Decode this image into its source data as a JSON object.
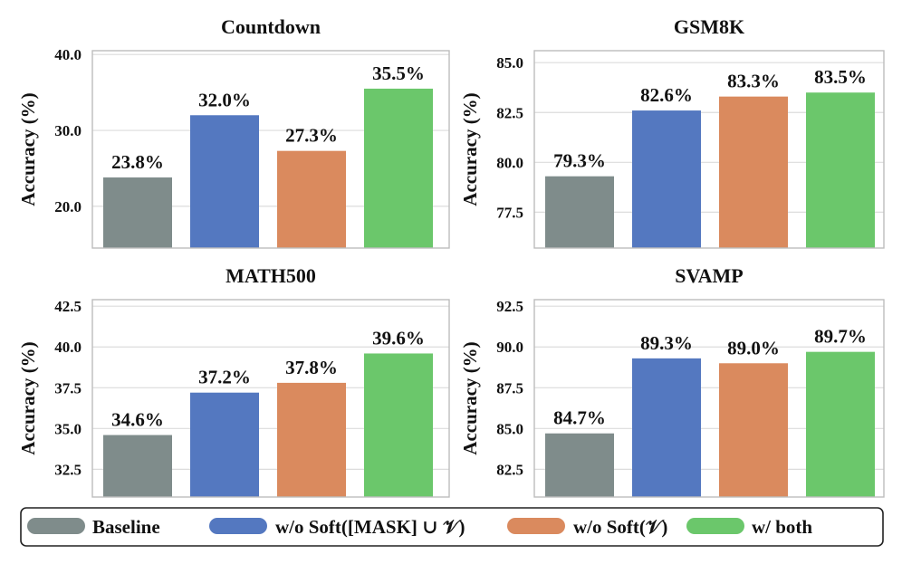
{
  "chart_data": [
    {
      "type": "bar",
      "title": "Countdown",
      "ylabel": "Accuracy (%)",
      "categories": [
        "Baseline",
        "w/o Soft([MASK] ∪ 𝒱)",
        "w/o Soft(𝒱)",
        "w/ both"
      ],
      "values": [
        23.8,
        32.0,
        27.3,
        35.5
      ],
      "value_labels": [
        "23.8%",
        "32.0%",
        "27.3%",
        "35.5%"
      ],
      "ylim": [
        14.5,
        40.5
      ],
      "yticks": [
        20.0,
        30.0,
        40.0
      ],
      "ytick_labels": [
        "20.0",
        "30.0",
        "40.0"
      ]
    },
    {
      "type": "bar",
      "title": "GSM8K",
      "ylabel": "Accuracy (%)",
      "categories": [
        "Baseline",
        "w/o Soft([MASK] ∪ 𝒱)",
        "w/o Soft(𝒱)",
        "w/ both"
      ],
      "values": [
        79.3,
        82.6,
        83.3,
        83.5
      ],
      "value_labels": [
        "79.3%",
        "82.6%",
        "83.3%",
        "83.5%"
      ],
      "ylim": [
        75.7,
        85.6
      ],
      "yticks": [
        77.5,
        80.0,
        82.5,
        85.0
      ],
      "ytick_labels": [
        "77.5",
        "80.0",
        "82.5",
        "85.0"
      ]
    },
    {
      "type": "bar",
      "title": "MATH500",
      "ylabel": "Accuracy (%)",
      "categories": [
        "Baseline",
        "w/o Soft([MASK] ∪ 𝒱)",
        "w/o Soft(𝒱)",
        "w/ both"
      ],
      "values": [
        34.6,
        37.2,
        37.8,
        39.6
      ],
      "value_labels": [
        "34.6%",
        "37.2%",
        "37.8%",
        "39.6%"
      ],
      "ylim": [
        30.8,
        42.9
      ],
      "yticks": [
        32.5,
        35.0,
        37.5,
        40.0,
        42.5
      ],
      "ytick_labels": [
        "32.5",
        "35.0",
        "37.5",
        "40.0",
        "42.5"
      ]
    },
    {
      "type": "bar",
      "title": "SVAMP",
      "ylabel": "Accuracy (%)",
      "categories": [
        "Baseline",
        "w/o Soft([MASK] ∪ 𝒱)",
        "w/o Soft(𝒱)",
        "w/ both"
      ],
      "values": [
        84.7,
        89.3,
        89.0,
        89.7
      ],
      "value_labels": [
        "84.7%",
        "89.3%",
        "89.0%",
        "89.7%"
      ],
      "ylim": [
        80.8,
        92.9
      ],
      "yticks": [
        82.5,
        85.0,
        87.5,
        90.0,
        92.5
      ],
      "ytick_labels": [
        "82.5",
        "85.0",
        "87.5",
        "90.0",
        "92.5"
      ]
    }
  ],
  "legend": {
    "position": "bottom",
    "items": [
      {
        "label": "Baseline",
        "color": "#7f8c8b"
      },
      {
        "label": "w/o Soft([MASK] ∪ 𝒱)",
        "color": "#5478c0"
      },
      {
        "label": "w/o Soft(𝒱)",
        "color": "#da8a5e"
      },
      {
        "label": "w/ both",
        "color": "#6bc76b"
      }
    ]
  },
  "colors": [
    "#7f8c8b",
    "#5478c0",
    "#da8a5e",
    "#6bc76b"
  ]
}
